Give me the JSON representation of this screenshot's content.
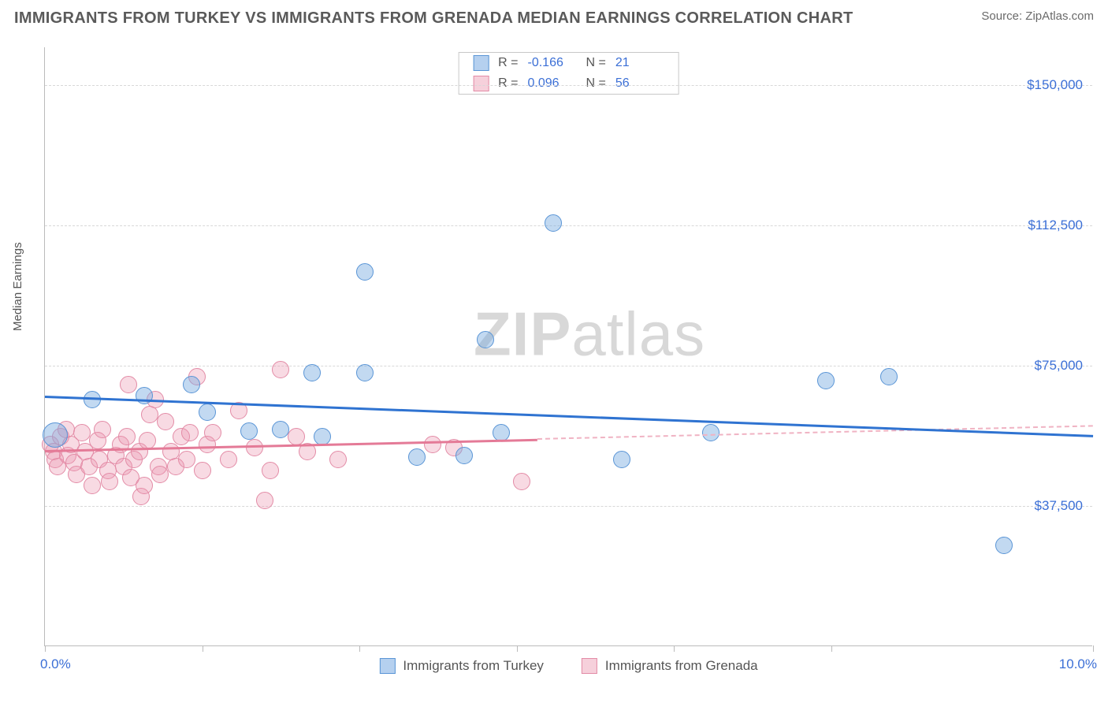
{
  "header": {
    "title": "IMMIGRANTS FROM TURKEY VS IMMIGRANTS FROM GRENADA MEDIAN EARNINGS CORRELATION CHART",
    "source_prefix": "Source: ",
    "source_name": "ZipAtlas.com"
  },
  "chart": {
    "type": "scatter-with-regression",
    "ylabel": "Median Earnings",
    "xlim": [
      0,
      10
    ],
    "ylim": [
      0,
      160000
    ],
    "yticks": [
      37500,
      75000,
      112500,
      150000
    ],
    "ytick_labels": [
      "$37,500",
      "$75,000",
      "$112,500",
      "$150,000"
    ],
    "xtick_positions": [
      0,
      1.5,
      3.0,
      4.5,
      6.0,
      7.5,
      10.0
    ],
    "xtick_labels": {
      "left": "0.0%",
      "right": "10.0%"
    },
    "grid_color": "#d8d8d8",
    "background_color": "#ffffff",
    "axis_color": "#bbbbbb",
    "tick_label_color": "#3b6fd6",
    "watermark": {
      "text_bold": "ZIP",
      "text_rest": "atlas",
      "color": "#d8d8d8"
    },
    "series": {
      "turkey": {
        "label": "Immigrants from Turkey",
        "color_fill": "rgba(120,170,225,0.45)",
        "color_stroke": "#5a95d6",
        "line_color": "#2f73d1",
        "marker_radius": 11,
        "R": "-0.166",
        "N": "21",
        "regression": {
          "x1": 0,
          "y1": 67000,
          "x2": 10,
          "y2": 56500
        },
        "points": [
          {
            "x": 0.45,
            "y": 66000
          },
          {
            "x": 0.95,
            "y": 67000
          },
          {
            "x": 1.4,
            "y": 70000
          },
          {
            "x": 1.55,
            "y": 62500
          },
          {
            "x": 1.95,
            "y": 57500
          },
          {
            "x": 2.25,
            "y": 58000
          },
          {
            "x": 2.55,
            "y": 73000
          },
          {
            "x": 2.65,
            "y": 56000
          },
          {
            "x": 3.05,
            "y": 73000
          },
          {
            "x": 3.05,
            "y": 100000
          },
          {
            "x": 3.55,
            "y": 50500
          },
          {
            "x": 4.0,
            "y": 51000
          },
          {
            "x": 4.2,
            "y": 82000
          },
          {
            "x": 4.35,
            "y": 57000
          },
          {
            "x": 4.85,
            "y": 113000
          },
          {
            "x": 5.5,
            "y": 50000
          },
          {
            "x": 6.35,
            "y": 57000
          },
          {
            "x": 7.45,
            "y": 71000
          },
          {
            "x": 8.05,
            "y": 72000
          },
          {
            "x": 9.15,
            "y": 27000
          },
          {
            "x": 0.1,
            "y": 56500,
            "r": 16
          }
        ]
      },
      "grenada": {
        "label": "Immigrants from Grenada",
        "color_fill": "rgba(235,150,175,0.35)",
        "color_stroke": "#e38ba6",
        "line_color": "#e47a97",
        "marker_radius": 11,
        "R": "0.096",
        "N": "56",
        "regression_solid": {
          "x1": 0,
          "y1": 52500,
          "x2": 4.7,
          "y2": 55500
        },
        "regression_dashed": {
          "x1": 4.7,
          "y1": 55500,
          "x2": 10,
          "y2": 59000
        },
        "points": [
          {
            "x": 0.05,
            "y": 54000
          },
          {
            "x": 0.08,
            "y": 52000
          },
          {
            "x": 0.1,
            "y": 50000
          },
          {
            "x": 0.12,
            "y": 48000
          },
          {
            "x": 0.15,
            "y": 56000
          },
          {
            "x": 0.2,
            "y": 58000
          },
          {
            "x": 0.22,
            "y": 51000
          },
          {
            "x": 0.25,
            "y": 54000
          },
          {
            "x": 0.28,
            "y": 49000
          },
          {
            "x": 0.3,
            "y": 46000
          },
          {
            "x": 0.35,
            "y": 57000
          },
          {
            "x": 0.38,
            "y": 52000
          },
          {
            "x": 0.42,
            "y": 48000
          },
          {
            "x": 0.45,
            "y": 43000
          },
          {
            "x": 0.5,
            "y": 55000
          },
          {
            "x": 0.52,
            "y": 50000
          },
          {
            "x": 0.55,
            "y": 58000
          },
          {
            "x": 0.6,
            "y": 47000
          },
          {
            "x": 0.62,
            "y": 44000
          },
          {
            "x": 0.68,
            "y": 51000
          },
          {
            "x": 0.72,
            "y": 54000
          },
          {
            "x": 0.75,
            "y": 48000
          },
          {
            "x": 0.78,
            "y": 56000
          },
          {
            "x": 0.8,
            "y": 70000
          },
          {
            "x": 0.82,
            "y": 45000
          },
          {
            "x": 0.85,
            "y": 50000
          },
          {
            "x": 0.9,
            "y": 52000
          },
          {
            "x": 0.92,
            "y": 40000
          },
          {
            "x": 0.95,
            "y": 43000
          },
          {
            "x": 0.98,
            "y": 55000
          },
          {
            "x": 1.0,
            "y": 62000
          },
          {
            "x": 1.05,
            "y": 66000
          },
          {
            "x": 1.08,
            "y": 48000
          },
          {
            "x": 1.1,
            "y": 46000
          },
          {
            "x": 1.15,
            "y": 60000
          },
          {
            "x": 1.2,
            "y": 52000
          },
          {
            "x": 1.25,
            "y": 48000
          },
          {
            "x": 1.3,
            "y": 56000
          },
          {
            "x": 1.35,
            "y": 50000
          },
          {
            "x": 1.38,
            "y": 57000
          },
          {
            "x": 1.45,
            "y": 72000
          },
          {
            "x": 1.5,
            "y": 47000
          },
          {
            "x": 1.55,
            "y": 54000
          },
          {
            "x": 1.6,
            "y": 57000
          },
          {
            "x": 1.75,
            "y": 50000
          },
          {
            "x": 1.85,
            "y": 63000
          },
          {
            "x": 2.0,
            "y": 53000
          },
          {
            "x": 2.1,
            "y": 39000
          },
          {
            "x": 2.15,
            "y": 47000
          },
          {
            "x": 2.25,
            "y": 74000
          },
          {
            "x": 2.4,
            "y": 56000
          },
          {
            "x": 2.5,
            "y": 52000
          },
          {
            "x": 2.8,
            "y": 50000
          },
          {
            "x": 3.7,
            "y": 54000
          },
          {
            "x": 3.9,
            "y": 53000
          },
          {
            "x": 4.55,
            "y": 44000
          }
        ]
      }
    },
    "legend": {
      "R_label": "R =",
      "N_label": "N ="
    },
    "bottom_legend": {
      "items": [
        "turkey",
        "grenada"
      ]
    }
  }
}
